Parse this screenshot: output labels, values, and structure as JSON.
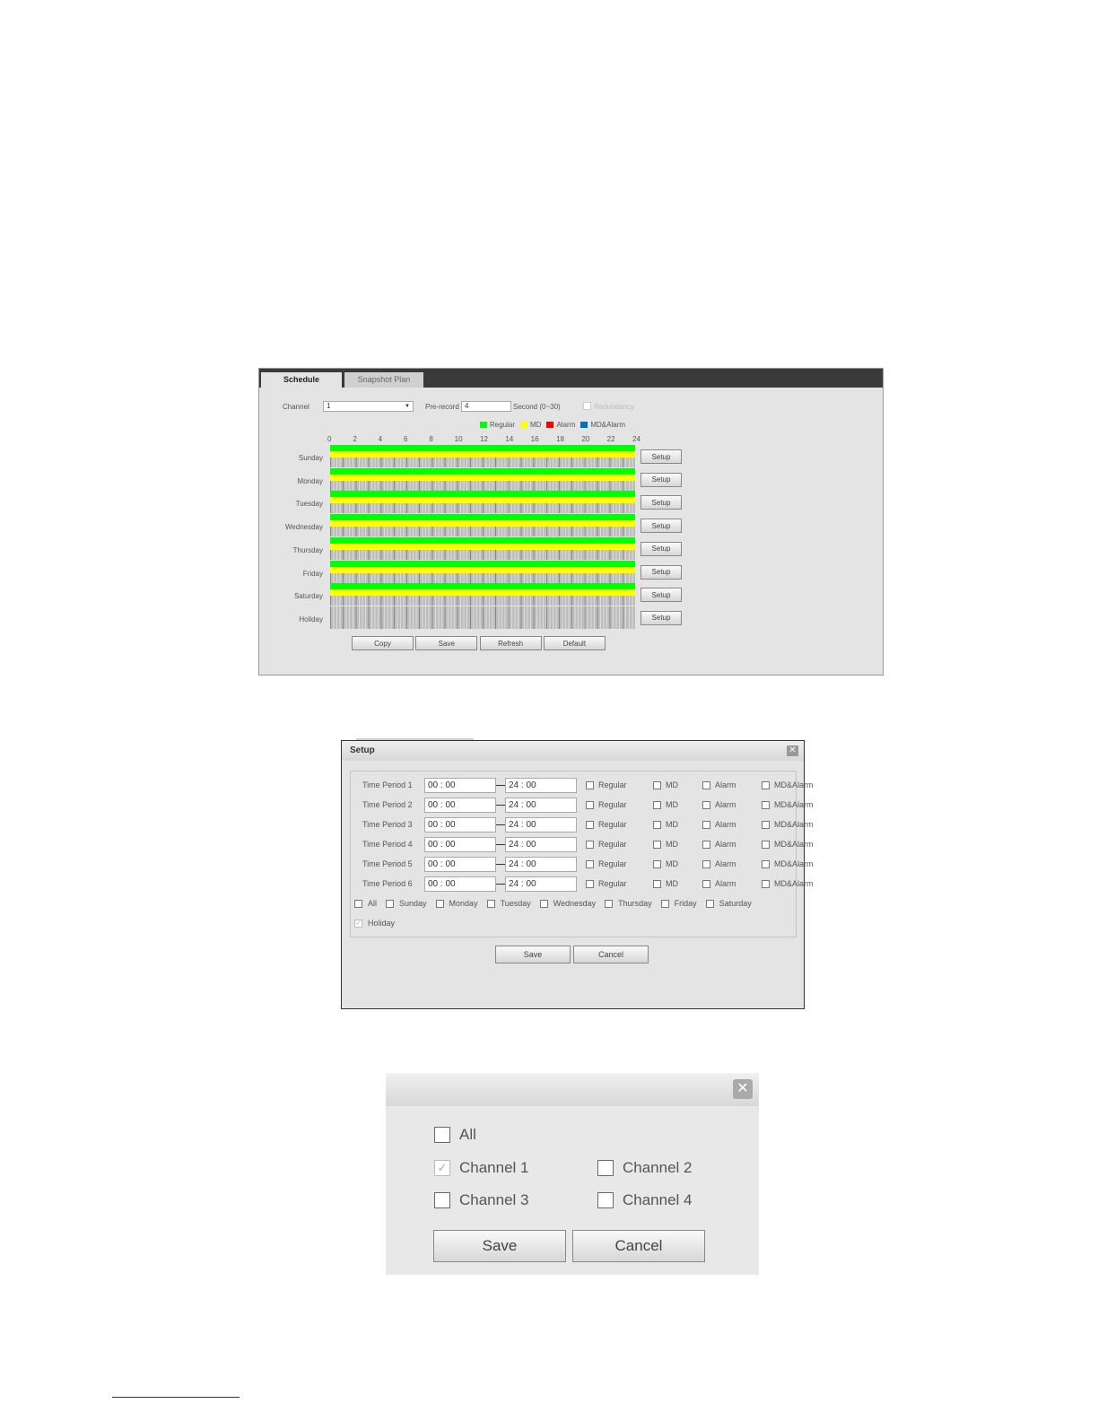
{
  "schedule": {
    "tabs": [
      "Schedule",
      "Snapshot Plan"
    ],
    "channel_label": "Channel",
    "channel_value": "1",
    "prerecord_label": "Pre-record",
    "prerecord_value": "4",
    "second_label": "Second (0~30)",
    "redundancy_label": "Redundancy",
    "legend": [
      {
        "label": "Regular",
        "color": "#00ff00"
      },
      {
        "label": "MD",
        "color": "#ffff00"
      },
      {
        "label": "Alarm",
        "color": "#ff0000"
      },
      {
        "label": "MD&Alarm",
        "color": "#0070c0"
      }
    ],
    "hours": [
      "0",
      "2",
      "4",
      "6",
      "8",
      "10",
      "12",
      "14",
      "16",
      "18",
      "20",
      "22",
      "24"
    ],
    "days": [
      {
        "name": "Sunday",
        "regular": true,
        "md": true
      },
      {
        "name": "Monday",
        "regular": true,
        "md": true
      },
      {
        "name": "Tuesday",
        "regular": true,
        "md": true
      },
      {
        "name": "Wednesday",
        "regular": true,
        "md": true
      },
      {
        "name": "Thursday",
        "regular": true,
        "md": true
      },
      {
        "name": "Friday",
        "regular": true,
        "md": true
      },
      {
        "name": "Saturday",
        "regular": true,
        "md": true
      },
      {
        "name": "Holiday",
        "regular": false,
        "md": false
      }
    ],
    "setup_label": "Setup",
    "buttons": [
      "Copy",
      "Save",
      "Refresh",
      "Default"
    ]
  },
  "setup_dialog": {
    "title": "Setup",
    "periods": [
      {
        "label": "Time Period 1",
        "start": "00 : 00",
        "end": "24 : 00"
      },
      {
        "label": "Time Period 2",
        "start": "00 : 00",
        "end": "24 : 00"
      },
      {
        "label": "Time Period 3",
        "start": "00 : 00",
        "end": "24 : 00"
      },
      {
        "label": "Time Period 4",
        "start": "00 : 00",
        "end": "24 : 00"
      },
      {
        "label": "Time Period 5",
        "start": "00 : 00",
        "end": "24 : 00"
      },
      {
        "label": "Time Period 6",
        "start": "00 : 00",
        "end": "24 : 00"
      }
    ],
    "types": [
      "Regular",
      "MD",
      "Alarm",
      "MD&Alarm"
    ],
    "days": [
      "All",
      "Sunday",
      "Monday",
      "Tuesday",
      "Wednesday",
      "Thursday",
      "Friday",
      "Saturday"
    ],
    "holiday": "Holiday",
    "save": "Save",
    "cancel": "Cancel"
  },
  "copy_dialog": {
    "all": "All",
    "channels": [
      {
        "label": "Channel 1",
        "checked": true
      },
      {
        "label": "Channel 2",
        "checked": false
      },
      {
        "label": "Channel 3",
        "checked": false
      },
      {
        "label": "Channel 4",
        "checked": false
      }
    ],
    "save": "Save",
    "cancel": "Cancel"
  }
}
